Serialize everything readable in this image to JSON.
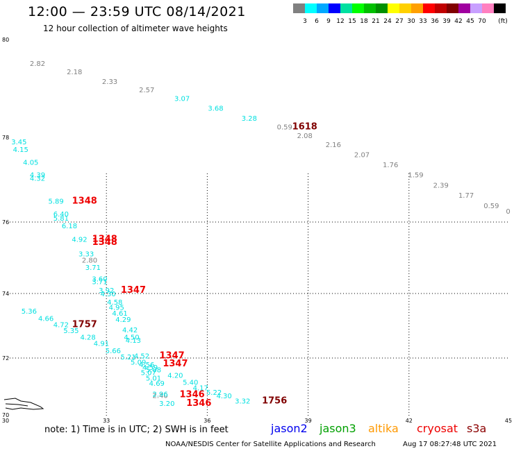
{
  "header": {
    "title": "12:00 — 23:59 UTC 08/14/2021",
    "subtitle": "12 hour collection of altimeter wave heights"
  },
  "legend": {
    "unit": "(ft)",
    "bins": [
      {
        "color": "#808080",
        "label": ""
      },
      {
        "color": "#00ffff",
        "label": "3"
      },
      {
        "color": "#00a8ff",
        "label": "6"
      },
      {
        "color": "#0000ff",
        "label": "9"
      },
      {
        "color": "#00e0a0",
        "label": "12"
      },
      {
        "color": "#00ff00",
        "label": "15"
      },
      {
        "color": "#00c000",
        "label": "18"
      },
      {
        "color": "#009000",
        "label": "21"
      },
      {
        "color": "#ffff00",
        "label": "24"
      },
      {
        "color": "#ffd000",
        "label": "27"
      },
      {
        "color": "#ffa000",
        "label": "30"
      },
      {
        "color": "#ff0000",
        "label": "33"
      },
      {
        "color": "#c00000",
        "label": "36"
      },
      {
        "color": "#800000",
        "label": "39"
      },
      {
        "color": "#a000a0",
        "label": "42"
      },
      {
        "color": "#c8a0ff",
        "label": "45"
      },
      {
        "color": "#ff80c0",
        "label": "70"
      },
      {
        "color": "#000000",
        "label": ""
      }
    ]
  },
  "axes": {
    "lon_labels": [
      "30",
      "33",
      "36",
      "39",
      "42",
      "45"
    ],
    "lat_labels": [
      "70",
      "72",
      "74",
      "76",
      "78",
      "80"
    ]
  },
  "colors": {
    "gray": "#808080",
    "cyan": "#00e0e0",
    "red": "#ee0000",
    "maroon": "#800000",
    "coast": "#000000"
  },
  "observations": [
    {
      "v": "2.82",
      "lon": 30.95,
      "lat": 79.52,
      "c": "gray"
    },
    {
      "v": "2.18",
      "lon": 32.05,
      "lat": 79.35,
      "c": "gray"
    },
    {
      "v": "2.33",
      "lon": 33.1,
      "lat": 79.15,
      "c": "gray"
    },
    {
      "v": "2.57",
      "lon": 34.2,
      "lat": 78.98,
      "c": "gray"
    },
    {
      "v": "3.07",
      "lon": 35.25,
      "lat": 78.8,
      "c": "cyan"
    },
    {
      "v": "3.68",
      "lon": 36.25,
      "lat": 78.6,
      "c": "cyan"
    },
    {
      "v": "3.28",
      "lon": 37.25,
      "lat": 78.4,
      "c": "cyan"
    },
    {
      "v": "0.59",
      "lon": 38.3,
      "lat": 78.22,
      "c": "gray"
    },
    {
      "v": "1618",
      "lon": 38.9,
      "lat": 78.22,
      "c": "maroon",
      "big": true
    },
    {
      "v": "2.08",
      "lon": 38.9,
      "lat": 78.04,
      "c": "gray"
    },
    {
      "v": "2.16",
      "lon": 39.75,
      "lat": 77.84,
      "c": "gray"
    },
    {
      "v": "2.07",
      "lon": 40.6,
      "lat": 77.6,
      "c": "gray"
    },
    {
      "v": "1.76",
      "lon": 41.45,
      "lat": 77.36,
      "c": "gray"
    },
    {
      "v": "1.59",
      "lon": 42.2,
      "lat": 77.12,
      "c": "gray"
    },
    {
      "v": "2.39",
      "lon": 42.95,
      "lat": 76.88,
      "c": "gray"
    },
    {
      "v": "1.77",
      "lon": 43.7,
      "lat": 76.64,
      "c": "gray"
    },
    {
      "v": "0.59",
      "lon": 44.45,
      "lat": 76.39,
      "c": "gray"
    },
    {
      "v": "3.45",
      "lon": 30.4,
      "lat": 77.9,
      "c": "cyan"
    },
    {
      "v": "4.15",
      "lon": 30.45,
      "lat": 77.72,
      "c": "cyan"
    },
    {
      "v": "4.05",
      "lon": 30.75,
      "lat": 77.42,
      "c": "cyan"
    },
    {
      "v": "4.39",
      "lon": 30.95,
      "lat": 77.12,
      "c": "cyan"
    },
    {
      "v": "4.32",
      "lon": 30.95,
      "lat": 77.04,
      "c": "cyan"
    },
    {
      "v": "5.89",
      "lon": 31.5,
      "lat": 76.5,
      "c": "cyan"
    },
    {
      "v": "1348",
      "lon": 32.35,
      "lat": 76.5,
      "c": "red",
      "big": true
    },
    {
      "v": "6.40",
      "lon": 31.65,
      "lat": 76.2,
      "c": "cyan"
    },
    {
      "v": "5.81",
      "lon": 31.65,
      "lat": 76.1,
      "c": "cyan"
    },
    {
      "v": "6.18",
      "lon": 31.9,
      "lat": 75.9,
      "c": "cyan"
    },
    {
      "v": "4.92",
      "lon": 32.2,
      "lat": 75.52,
      "c": "cyan"
    },
    {
      "v": "1348",
      "lon": 32.95,
      "lat": 75.52,
      "c": "red",
      "big": true
    },
    {
      "v": "1348",
      "lon": 32.95,
      "lat": 75.44,
      "c": "red",
      "big": true
    },
    {
      "v": "3.33",
      "lon": 32.4,
      "lat": 75.12,
      "c": "cyan"
    },
    {
      "v": "2.80",
      "lon": 32.5,
      "lat": 74.94,
      "c": "gray"
    },
    {
      "v": "3.71",
      "lon": 32.6,
      "lat": 74.74,
      "c": "cyan"
    },
    {
      "v": "3.60",
      "lon": 32.8,
      "lat": 74.42,
      "c": "cyan"
    },
    {
      "v": "3.71",
      "lon": 32.8,
      "lat": 74.34,
      "c": "cyan"
    },
    {
      "v": "3.92",
      "lon": 33.0,
      "lat": 74.1,
      "c": "cyan"
    },
    {
      "v": "4.30",
      "lon": 33.05,
      "lat": 74.0,
      "c": "cyan"
    },
    {
      "v": "1347",
      "lon": 33.8,
      "lat": 74.1,
      "c": "red",
      "big": true
    },
    {
      "v": "4.58",
      "lon": 33.25,
      "lat": 73.74,
      "c": "cyan"
    },
    {
      "v": "4.95",
      "lon": 33.3,
      "lat": 73.58,
      "c": "cyan"
    },
    {
      "v": "4.61",
      "lon": 33.4,
      "lat": 73.4,
      "c": "cyan"
    },
    {
      "v": "4.29",
      "lon": 33.5,
      "lat": 73.2,
      "c": "cyan"
    },
    {
      "v": "5.36",
      "lon": 30.7,
      "lat": 73.46,
      "c": "cyan"
    },
    {
      "v": "4.66",
      "lon": 31.2,
      "lat": 73.24,
      "c": "cyan"
    },
    {
      "v": "4.72",
      "lon": 31.65,
      "lat": 73.04,
      "c": "cyan"
    },
    {
      "v": "1757",
      "lon": 32.35,
      "lat": 73.04,
      "c": "maroon",
      "big": true
    },
    {
      "v": "5.35",
      "lon": 31.95,
      "lat": 72.86,
      "c": "cyan"
    },
    {
      "v": "4.28",
      "lon": 32.45,
      "lat": 72.66,
      "c": "cyan"
    },
    {
      "v": "4.91",
      "lon": 32.85,
      "lat": 72.46,
      "c": "cyan"
    },
    {
      "v": "4.42",
      "lon": 33.7,
      "lat": 72.88,
      "c": "cyan"
    },
    {
      "v": "4.50",
      "lon": 33.75,
      "lat": 72.66,
      "c": "cyan"
    },
    {
      "v": "4.13",
      "lon": 33.8,
      "lat": 72.56,
      "c": "cyan"
    },
    {
      "v": "5.66",
      "lon": 33.2,
      "lat": 72.24,
      "c": "cyan"
    },
    {
      "v": "5.21",
      "lon": 33.65,
      "lat": 72.04,
      "c": "cyan"
    },
    {
      "v": "4.52",
      "lon": 34.05,
      "lat": 72.08,
      "c": "cyan"
    },
    {
      "v": "1347",
      "lon": 34.95,
      "lat": 72.08,
      "c": "red",
      "big": true
    },
    {
      "v": "5.09",
      "lon": 33.95,
      "lat": 71.86,
      "c": "cyan"
    },
    {
      "v": "1347",
      "lon": 35.05,
      "lat": 71.8,
      "c": "red",
      "big": true
    },
    {
      "v": "4.56",
      "lon": 34.2,
      "lat": 71.78,
      "c": "cyan"
    },
    {
      "v": "4.59",
      "lon": 34.3,
      "lat": 71.68,
      "c": "cyan"
    },
    {
      "v": "5.08",
      "lon": 34.4,
      "lat": 71.6,
      "c": "cyan"
    },
    {
      "v": "5.07",
      "lon": 34.25,
      "lat": 71.5,
      "c": "cyan"
    },
    {
      "v": "4.20",
      "lon": 35.05,
      "lat": 71.4,
      "c": "cyan"
    },
    {
      "v": "5.01",
      "lon": 34.4,
      "lat": 71.3,
      "c": "cyan"
    },
    {
      "v": "5.40",
      "lon": 35.5,
      "lat": 71.16,
      "c": "cyan"
    },
    {
      "v": "4.69",
      "lon": 34.5,
      "lat": 71.12,
      "c": "cyan"
    },
    {
      "v": "4.17",
      "lon": 35.8,
      "lat": 70.96,
      "c": "cyan"
    },
    {
      "v": "5.22",
      "lon": 36.2,
      "lat": 70.8,
      "c": "cyan"
    },
    {
      "v": "2.40",
      "lon": 34.6,
      "lat": 70.7,
      "c": "gray"
    },
    {
      "v": "2.96",
      "lon": 34.6,
      "lat": 70.74,
      "c": "cyan"
    },
    {
      "v": "1346",
      "lon": 35.55,
      "lat": 70.72,
      "c": "red",
      "big": true
    },
    {
      "v": "4.30",
      "lon": 36.5,
      "lat": 70.68,
      "c": "cyan"
    },
    {
      "v": "3.20",
      "lon": 34.8,
      "lat": 70.42,
      "c": "cyan"
    },
    {
      "v": "1346",
      "lon": 35.75,
      "lat": 70.42,
      "c": "red",
      "big": true
    },
    {
      "v": "3.32",
      "lon": 37.05,
      "lat": 70.5,
      "c": "cyan"
    },
    {
      "v": "1756",
      "lon": 38.0,
      "lat": 70.5,
      "c": "maroon",
      "big": true
    },
    {
      "v": "0",
      "lon": 44.95,
      "lat": 76.26,
      "c": "gray"
    }
  ],
  "footer": {
    "note": "note: 1) Time is in UTC; 2) SWH is in feet",
    "missions": [
      {
        "name": "jason2",
        "color": "#0000ee"
      },
      {
        "name": "jason3",
        "color": "#00a000"
      },
      {
        "name": "altika",
        "color": "#ff9900"
      },
      {
        "name": "cryosat",
        "color": "#ee0000"
      },
      {
        "name": "s3a",
        "color": "#8b0000"
      }
    ],
    "credit": "NOAA/NESDIS Center for Satellite Applications and Research",
    "timestamp": "Aug 17 08:27:48 UTC 2021"
  }
}
